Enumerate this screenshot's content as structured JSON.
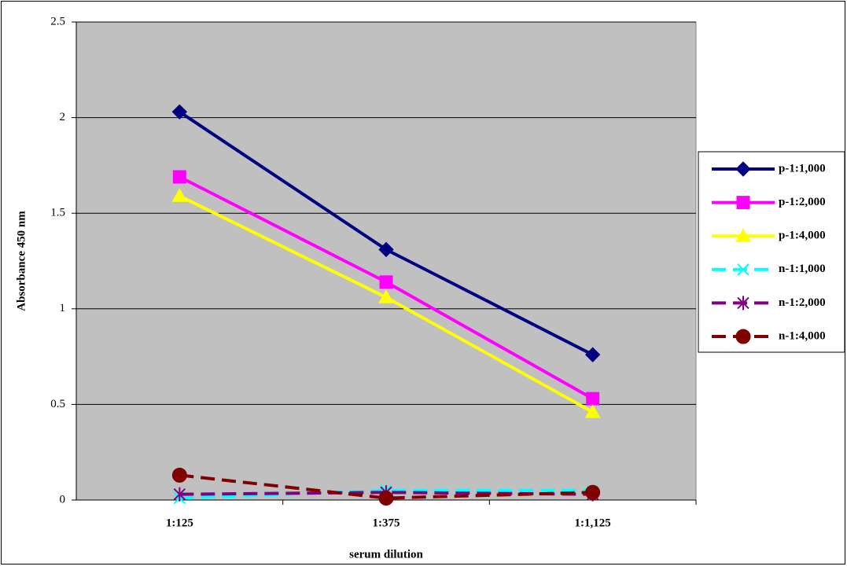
{
  "chart_data": {
    "type": "line",
    "x_label": "serum dilution",
    "y_label": "Absorbance 450 nm",
    "categories": [
      "1:125",
      "1:375",
      "1:1,125"
    ],
    "ylim": [
      0,
      2.5
    ],
    "yticks": [
      0,
      0.5,
      1,
      1.5,
      2,
      2.5
    ],
    "grid": true,
    "legend": "right",
    "series": [
      {
        "name": "p-1:1,000",
        "color": "#000080",
        "marker": "diamond",
        "dashed": false,
        "values": [
          2.03,
          1.31,
          0.76
        ]
      },
      {
        "name": "p-1:2,000",
        "color": "#ff00ff",
        "marker": "square",
        "dashed": false,
        "values": [
          1.69,
          1.14,
          0.53
        ]
      },
      {
        "name": "p-1:4,000",
        "color": "#ffff00",
        "marker": "triangle",
        "dashed": false,
        "values": [
          1.59,
          1.06,
          0.46
        ]
      },
      {
        "name": "n-1:1,000",
        "color": "#00ffff",
        "marker": "x",
        "dashed": true,
        "values": [
          0.01,
          0.05,
          0.05
        ]
      },
      {
        "name": "n-1:2,000",
        "color": "#800080",
        "marker": "asterisk",
        "dashed": true,
        "values": [
          0.03,
          0.04,
          0.03
        ]
      },
      {
        "name": "n-1:4,000",
        "color": "#800000",
        "marker": "circle",
        "dashed": true,
        "values": [
          0.13,
          0.01,
          0.04
        ]
      }
    ]
  }
}
